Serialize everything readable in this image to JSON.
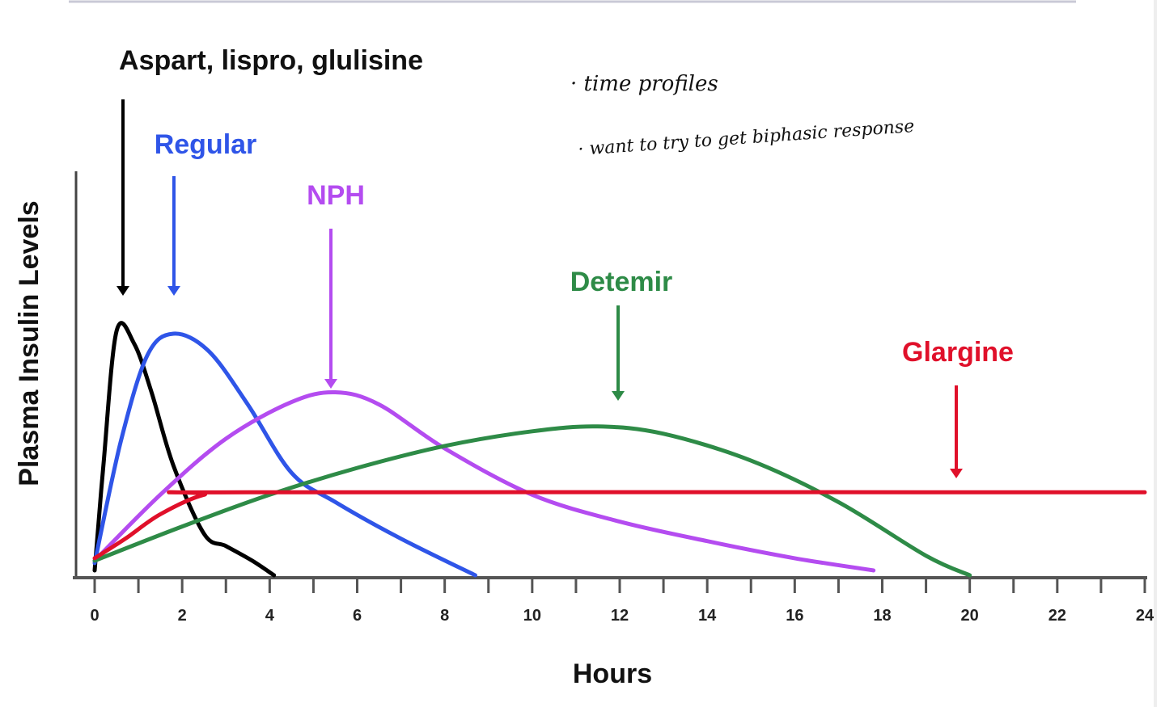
{
  "chart_data": {
    "type": "line",
    "xlabel": "Hours",
    "ylabel": "Plasma Insulin Levels",
    "xlim": [
      0,
      24
    ],
    "ylim": [
      0,
      1
    ],
    "x_ticks": [
      0,
      2,
      4,
      6,
      8,
      10,
      12,
      14,
      16,
      18,
      20,
      22,
      24
    ],
    "grid": false,
    "legend": "inline labels with arrows",
    "series": [
      {
        "name": "Aspart, lispro, glulisine",
        "color": "#000000",
        "label_color": "#111111",
        "peak_x": 0.65,
        "points": [
          [
            0,
            0.02
          ],
          [
            0.2,
            0.45
          ],
          [
            0.5,
            1.0
          ],
          [
            0.9,
            0.95
          ],
          [
            1.3,
            0.75
          ],
          [
            1.8,
            0.45
          ],
          [
            2.5,
            0.17
          ],
          [
            3.0,
            0.12
          ],
          [
            3.6,
            0.06
          ],
          [
            4.1,
            0.0
          ]
        ]
      },
      {
        "name": "Regular",
        "color": "#2f55e8",
        "label_color": "#2f55e8",
        "peak_x": 1.85,
        "points": [
          [
            0,
            0.05
          ],
          [
            0.6,
            0.55
          ],
          [
            1.2,
            0.9
          ],
          [
            1.8,
            0.99
          ],
          [
            2.6,
            0.92
          ],
          [
            3.5,
            0.7
          ],
          [
            4.5,
            0.42
          ],
          [
            5.5,
            0.3
          ],
          [
            7,
            0.15
          ],
          [
            8.7,
            0.0
          ]
        ]
      },
      {
        "name": "NPH",
        "color": "#b44cf0",
        "label_color": "#b44cf0",
        "peak_x": 5.4,
        "points": [
          [
            0,
            0.06
          ],
          [
            1.5,
            0.33
          ],
          [
            3,
            0.56
          ],
          [
            4.5,
            0.71
          ],
          [
            5.5,
            0.75
          ],
          [
            6.5,
            0.7
          ],
          [
            8,
            0.52
          ],
          [
            10,
            0.33
          ],
          [
            12,
            0.22
          ],
          [
            14,
            0.14
          ],
          [
            16,
            0.07
          ],
          [
            17.8,
            0.02
          ]
        ]
      },
      {
        "name": "Detemir",
        "color": "#2e8b47",
        "label_color": "#2e8b47",
        "peak_x": 12,
        "points": [
          [
            0,
            0.06
          ],
          [
            2,
            0.2
          ],
          [
            4,
            0.33
          ],
          [
            6,
            0.44
          ],
          [
            8,
            0.53
          ],
          [
            10,
            0.59
          ],
          [
            11.5,
            0.61
          ],
          [
            13,
            0.58
          ],
          [
            15,
            0.47
          ],
          [
            17,
            0.3
          ],
          [
            19,
            0.08
          ],
          [
            20,
            0.0
          ]
        ]
      },
      {
        "name": "Glargine",
        "color": "#e0102a",
        "label_color": "#e0102a",
        "peak_x": 20,
        "points": [
          [
            0,
            0.07
          ],
          [
            0.7,
            0.15
          ],
          [
            1.5,
            0.25
          ],
          [
            2.5,
            0.33
          ],
          [
            3.5,
            0.34
          ],
          [
            24,
            0.34
          ]
        ]
      }
    ]
  },
  "annotations": {
    "note_1": "· time profiles",
    "note_2": "· want to try to get biphasic response"
  }
}
